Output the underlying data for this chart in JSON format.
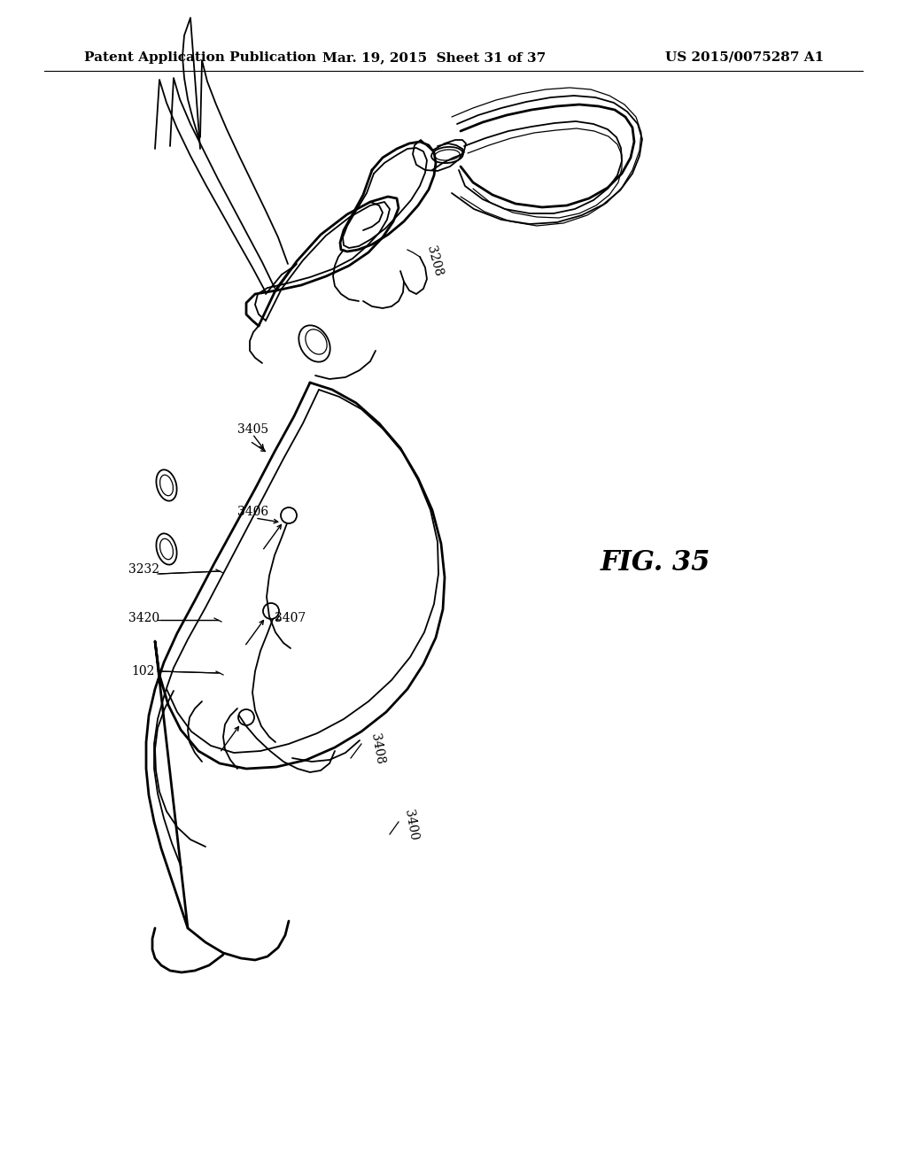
{
  "header_left": "Patent Application Publication",
  "header_mid": "Mar. 19, 2015  Sheet 31 of 37",
  "header_right": "US 2015/0075287 A1",
  "fig_label": "FIG. 35",
  "background": "#ffffff",
  "line_color": "#000000",
  "text_color": "#000000",
  "header_fontsize": 11,
  "label_fontsize": 10,
  "fig_label_fontsize": 22
}
